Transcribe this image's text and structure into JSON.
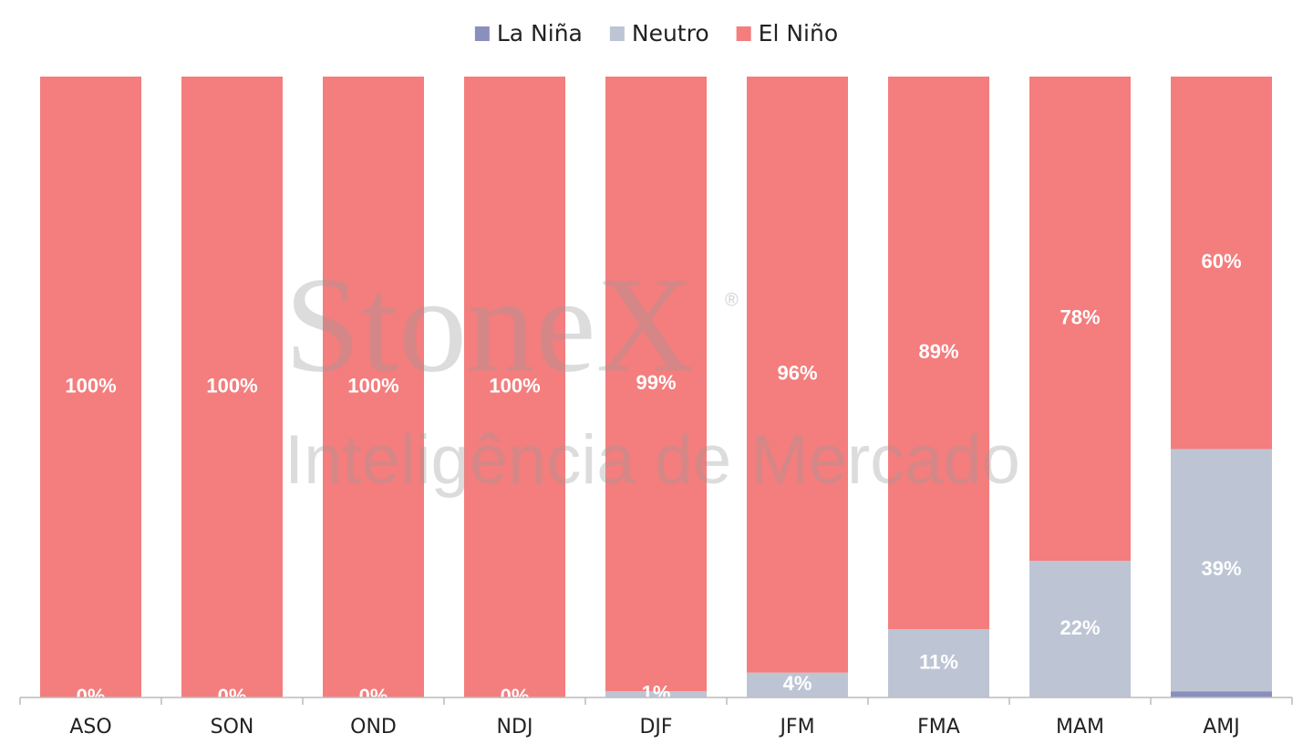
{
  "chart_data": {
    "type": "stacked_bar",
    "categories": [
      "ASO",
      "SON",
      "OND",
      "NDJ",
      "DJF",
      "JFM",
      "FMA",
      "MAM",
      "AMJ"
    ],
    "series": [
      {
        "name": "La Niña",
        "color": "#8b8fbd",
        "values": [
          0,
          0,
          0,
          0,
          0,
          0,
          0,
          0,
          1
        ]
      },
      {
        "name": "Neutro",
        "color": "#bdc5d4",
        "values": [
          0,
          0,
          0,
          0,
          1,
          4,
          11,
          22,
          39
        ],
        "value_labels": [
          "0%",
          "0%",
          "0%",
          "0%",
          "1%",
          "4%",
          "11%",
          "22%",
          "39%"
        ]
      },
      {
        "name": "El Niño",
        "color": "#f47d7d",
        "values": [
          100,
          100,
          100,
          100,
          99,
          96,
          89,
          78,
          60
        ],
        "value_labels": [
          "100%",
          "100%",
          "100%",
          "100%",
          "99%",
          "96%",
          "89%",
          "78%",
          "60%"
        ]
      }
    ],
    "ylim": [
      0,
      100
    ],
    "legend": "top",
    "watermark": {
      "brand": "StoneX",
      "mark": "®",
      "tagline": "Inteligência de Mercado"
    }
  }
}
